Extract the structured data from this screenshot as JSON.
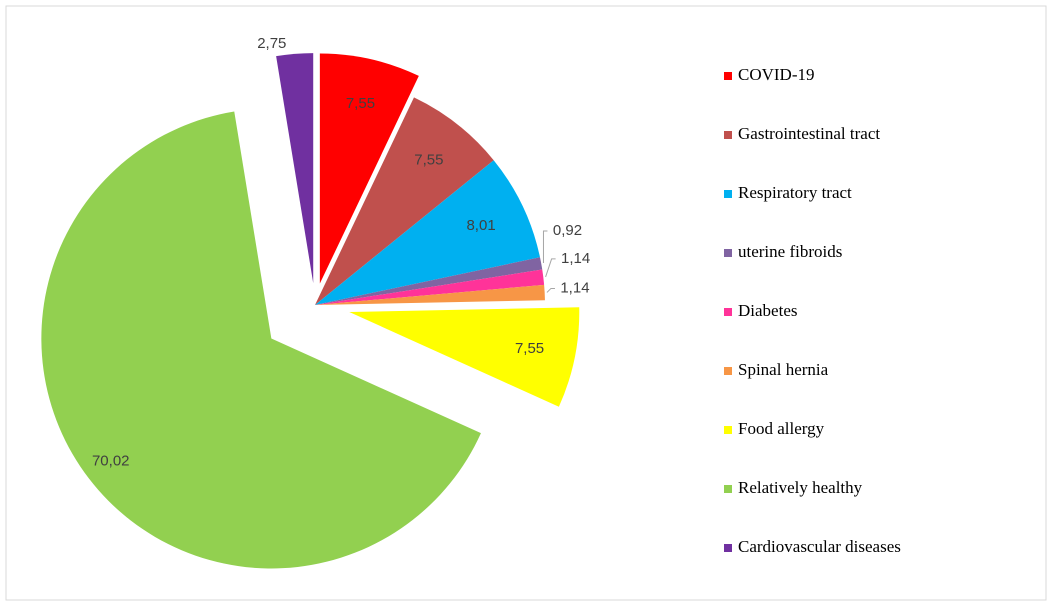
{
  "chart_data": {
    "type": "pie",
    "categories": [
      "COVID-19",
      "Gastrointestinal tract",
      "Respiratory tract",
      "uterine fibroids",
      "Diabetes",
      "Spinal hernia",
      "Food allergy",
      "Relatively healthy",
      "Cardiovascular diseases"
    ],
    "values": [
      7.55,
      7.55,
      8.01,
      0.92,
      1.14,
      1.14,
      7.55,
      70.02,
      2.75
    ],
    "value_labels": [
      "7,55",
      "7,55",
      "8,01",
      "0,92",
      "1,14",
      "1,14",
      "7,55",
      "70,02",
      "2,75"
    ],
    "colors": [
      "#ff0000",
      "#c0504d",
      "#00b0f0",
      "#8064a2",
      "#ff3399",
      "#f79646",
      "#ffff00",
      "#92d050",
      "#7030a0"
    ],
    "legend": "right"
  }
}
